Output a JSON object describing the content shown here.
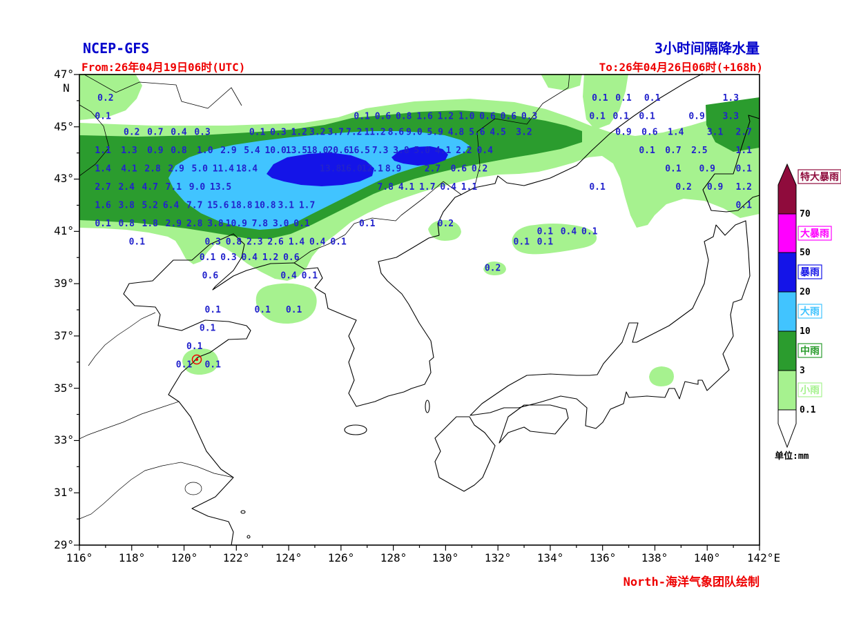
{
  "header": {
    "model_label": "NCEP-GFS",
    "product_title": "3小时间隔降水量",
    "valid_from": "From:26年04月19日06时(UTC)",
    "valid_to": "To:26年04月26日06时(+168h)"
  },
  "footer": {
    "credit": "North-海洋气象团队绘制"
  },
  "axes": {
    "x_tick_labels": [
      "116°",
      "118°",
      "120°",
      "122°",
      "124°",
      "126°",
      "128°",
      "130°",
      "132°",
      "134°",
      "136°",
      "138°",
      "140°",
      "142°E"
    ],
    "y_tick_labels": [
      "47°",
      "45°",
      "43°",
      "41°",
      "39°",
      "37°",
      "35°",
      "33°",
      "31°",
      "29°"
    ],
    "y_axis_sub_label": "N",
    "lon_min": 116,
    "lon_max": 142,
    "lat_min": 29,
    "lat_max": 47
  },
  "legend": {
    "unit_label": "单位:mm",
    "bands": [
      {
        "name": "特大暴雨",
        "color": "#8F0B3C"
      },
      {
        "name": "大暴雨",
        "color": "#FF00FF"
      },
      {
        "name": "暴雨",
        "color": "#1414E8"
      },
      {
        "name": "大雨",
        "color": "#41C4FF"
      },
      {
        "name": "中雨",
        "color": "#2B9C2E"
      },
      {
        "name": "小雨",
        "color": "#A6F28F"
      }
    ],
    "thresholds": [
      "70",
      "50",
      "20",
      "10",
      "3",
      "0.1"
    ]
  },
  "colors": {
    "title_blue": "#0000CC",
    "annotation_red": "#EE0000",
    "value_blue": "#2222CC",
    "rain_light": "#A6F28F",
    "rain_moderate": "#2B9C2E",
    "rain_heavy": "#41C4FF",
    "rain_storm": "#1414E8",
    "rain_severe": "#FF00FF",
    "rain_extreme": "#8F0B3C"
  },
  "chart_data": {
    "type": "heatmap",
    "title": "3小时间隔降水量 (NCEP-GFS +168h)",
    "units": "mm",
    "x_range": [
      116,
      142
    ],
    "y_range": [
      29,
      47
    ],
    "legend_levels": [
      0.1,
      3,
      10,
      20,
      50,
      70
    ],
    "points": [
      [
        117.0,
        46.1,
        "0.2"
      ],
      [
        135.9,
        46.1,
        "0.1"
      ],
      [
        136.8,
        46.1,
        "0.1"
      ],
      [
        137.9,
        46.1,
        "0.1"
      ],
      [
        140.9,
        46.1,
        "1.3"
      ],
      [
        116.9,
        45.4,
        "0.1"
      ],
      [
        126.8,
        45.4,
        "0.1"
      ],
      [
        127.6,
        45.4,
        "0.6"
      ],
      [
        128.4,
        45.4,
        "0.8"
      ],
      [
        129.2,
        45.4,
        "1.6"
      ],
      [
        130.0,
        45.4,
        "1.2"
      ],
      [
        130.8,
        45.4,
        "1.0"
      ],
      [
        131.6,
        45.4,
        "0.6"
      ],
      [
        132.4,
        45.4,
        "0.6"
      ],
      [
        133.2,
        45.4,
        "0.3"
      ],
      [
        135.8,
        45.4,
        "0.1"
      ],
      [
        136.7,
        45.4,
        "0.1"
      ],
      [
        137.7,
        45.4,
        "0.1"
      ],
      [
        139.6,
        45.4,
        "0.9"
      ],
      [
        140.9,
        45.4,
        "3.3"
      ],
      [
        118.0,
        44.8,
        "0.2"
      ],
      [
        118.9,
        44.8,
        "0.7"
      ],
      [
        119.8,
        44.8,
        "0.4"
      ],
      [
        120.7,
        44.8,
        "0.3"
      ],
      [
        122.8,
        44.8,
        "0.1"
      ],
      [
        123.6,
        44.8,
        "0.3"
      ],
      [
        124.4,
        44.8,
        "1.2"
      ],
      [
        125.1,
        44.8,
        "3.2"
      ],
      [
        125.8,
        44.8,
        "3.7"
      ],
      [
        126.5,
        44.8,
        "7.2"
      ],
      [
        127.3,
        44.8,
        "11.2"
      ],
      [
        128.1,
        44.8,
        "8.6"
      ],
      [
        128.8,
        44.8,
        "9.0"
      ],
      [
        129.6,
        44.8,
        "5.9"
      ],
      [
        130.4,
        44.8,
        "4.8"
      ],
      [
        131.2,
        44.8,
        "5.6"
      ],
      [
        132.0,
        44.8,
        "4.5"
      ],
      [
        133.0,
        44.8,
        "3.2"
      ],
      [
        136.8,
        44.8,
        "0.9"
      ],
      [
        137.8,
        44.8,
        "0.6"
      ],
      [
        138.8,
        44.8,
        "1.4"
      ],
      [
        140.3,
        44.8,
        "3.1"
      ],
      [
        141.4,
        44.8,
        "2.7"
      ],
      [
        116.9,
        44.1,
        "1.1"
      ],
      [
        117.9,
        44.1,
        "1.3"
      ],
      [
        118.9,
        44.1,
        "0.9"
      ],
      [
        119.8,
        44.1,
        "0.8"
      ],
      [
        120.8,
        44.1,
        "1.0"
      ],
      [
        121.7,
        44.1,
        "2.9"
      ],
      [
        122.6,
        44.1,
        "5.4"
      ],
      [
        123.5,
        44.1,
        "10.0"
      ],
      [
        124.3,
        44.1,
        "13.5"
      ],
      [
        125.1,
        44.1,
        "18.0"
      ],
      [
        125.9,
        44.1,
        "20.6"
      ],
      [
        126.7,
        44.1,
        "16.5"
      ],
      [
        127.5,
        44.1,
        "7.3"
      ],
      [
        128.3,
        44.1,
        "3.8"
      ],
      [
        129.1,
        44.1,
        "5.0"
      ],
      [
        129.9,
        44.1,
        "4.1"
      ],
      [
        130.7,
        44.1,
        "2.2"
      ],
      [
        131.5,
        44.1,
        "0.4"
      ],
      [
        137.7,
        44.1,
        "0.1"
      ],
      [
        138.7,
        44.1,
        "0.7"
      ],
      [
        139.7,
        44.1,
        "2.5"
      ],
      [
        141.4,
        44.1,
        "1.1"
      ],
      [
        116.9,
        43.4,
        "1.4"
      ],
      [
        117.9,
        43.4,
        "4.1"
      ],
      [
        118.8,
        43.4,
        "2.8"
      ],
      [
        119.7,
        43.4,
        "2.9"
      ],
      [
        120.6,
        43.4,
        "5.0"
      ],
      [
        121.5,
        43.4,
        "11.4"
      ],
      [
        122.4,
        43.4,
        "18.4"
      ],
      [
        125.6,
        43.4,
        "13.8"
      ],
      [
        126.4,
        43.4,
        "16.0"
      ],
      [
        127.2,
        43.4,
        "12.1"
      ],
      [
        128.0,
        43.4,
        "8.9"
      ],
      [
        129.5,
        43.4,
        "2.7"
      ],
      [
        130.5,
        43.4,
        "0.6"
      ],
      [
        131.3,
        43.4,
        "0.2"
      ],
      [
        138.7,
        43.4,
        "0.1"
      ],
      [
        140.0,
        43.4,
        "0.9"
      ],
      [
        141.4,
        43.4,
        "0.1"
      ],
      [
        116.9,
        42.7,
        "2.7"
      ],
      [
        117.8,
        42.7,
        "2.4"
      ],
      [
        118.7,
        42.7,
        "4.7"
      ],
      [
        119.6,
        42.7,
        "7.1"
      ],
      [
        120.5,
        42.7,
        "9.0"
      ],
      [
        121.4,
        42.7,
        "13.5"
      ],
      [
        127.7,
        42.7,
        "7.8"
      ],
      [
        128.5,
        42.7,
        "4.1"
      ],
      [
        129.3,
        42.7,
        "1.7"
      ],
      [
        130.1,
        42.7,
        "0.4"
      ],
      [
        130.9,
        42.7,
        "1.1"
      ],
      [
        135.8,
        42.7,
        "0.1"
      ],
      [
        139.1,
        42.7,
        "0.2"
      ],
      [
        140.3,
        42.7,
        "0.9"
      ],
      [
        141.4,
        42.7,
        "1.2"
      ],
      [
        116.9,
        42.0,
        "1.6"
      ],
      [
        117.8,
        42.0,
        "3.8"
      ],
      [
        118.7,
        42.0,
        "5.2"
      ],
      [
        119.5,
        42.0,
        "6.4"
      ],
      [
        120.4,
        42.0,
        "7.7"
      ],
      [
        121.3,
        42.0,
        "15.6"
      ],
      [
        122.2,
        42.0,
        "18.8"
      ],
      [
        123.1,
        42.0,
        "10.8"
      ],
      [
        123.9,
        42.0,
        "3.1"
      ],
      [
        124.7,
        42.0,
        "1.7"
      ],
      [
        141.4,
        42.0,
        "0.1"
      ],
      [
        116.9,
        41.3,
        "0.1"
      ],
      [
        117.8,
        41.3,
        "0.8"
      ],
      [
        118.7,
        41.3,
        "1.8"
      ],
      [
        119.6,
        41.3,
        "2.9"
      ],
      [
        120.4,
        41.3,
        "2.8"
      ],
      [
        121.2,
        41.3,
        "3.8"
      ],
      [
        122.0,
        41.3,
        "10.9"
      ],
      [
        122.9,
        41.3,
        "7.8"
      ],
      [
        123.7,
        41.3,
        "3.0"
      ],
      [
        124.5,
        41.3,
        "0.1"
      ],
      [
        127.0,
        41.3,
        "0.1"
      ],
      [
        130.0,
        41.3,
        "0.2"
      ],
      [
        133.8,
        41.0,
        "0.1"
      ],
      [
        134.7,
        41.0,
        "0.4"
      ],
      [
        135.5,
        41.0,
        "0.1"
      ],
      [
        118.2,
        40.6,
        "0.1"
      ],
      [
        121.1,
        40.6,
        "0.3"
      ],
      [
        121.9,
        40.6,
        "0.8"
      ],
      [
        122.7,
        40.6,
        "2.3"
      ],
      [
        123.5,
        40.6,
        "2.6"
      ],
      [
        124.3,
        40.6,
        "1.4"
      ],
      [
        125.1,
        40.6,
        "0.4"
      ],
      [
        125.9,
        40.6,
        "0.1"
      ],
      [
        132.9,
        40.6,
        "0.1"
      ],
      [
        133.8,
        40.6,
        "0.1"
      ],
      [
        120.9,
        40.0,
        "0.1"
      ],
      [
        121.7,
        40.0,
        "0.3"
      ],
      [
        122.5,
        40.0,
        "0.4"
      ],
      [
        123.3,
        40.0,
        "1.2"
      ],
      [
        124.1,
        40.0,
        "0.6"
      ],
      [
        131.8,
        39.6,
        "0.2"
      ],
      [
        121.0,
        39.3,
        "0.6"
      ],
      [
        124.0,
        39.3,
        "0.4"
      ],
      [
        124.8,
        39.3,
        "0.1"
      ],
      [
        121.1,
        38.0,
        "0.1"
      ],
      [
        123.0,
        38.0,
        "0.1"
      ],
      [
        124.2,
        38.0,
        "0.1"
      ],
      [
        120.9,
        37.3,
        "0.1"
      ],
      [
        120.4,
        36.6,
        "0.1"
      ],
      [
        120.0,
        35.9,
        "0.1"
      ],
      [
        121.1,
        35.9,
        "0.1"
      ]
    ]
  }
}
